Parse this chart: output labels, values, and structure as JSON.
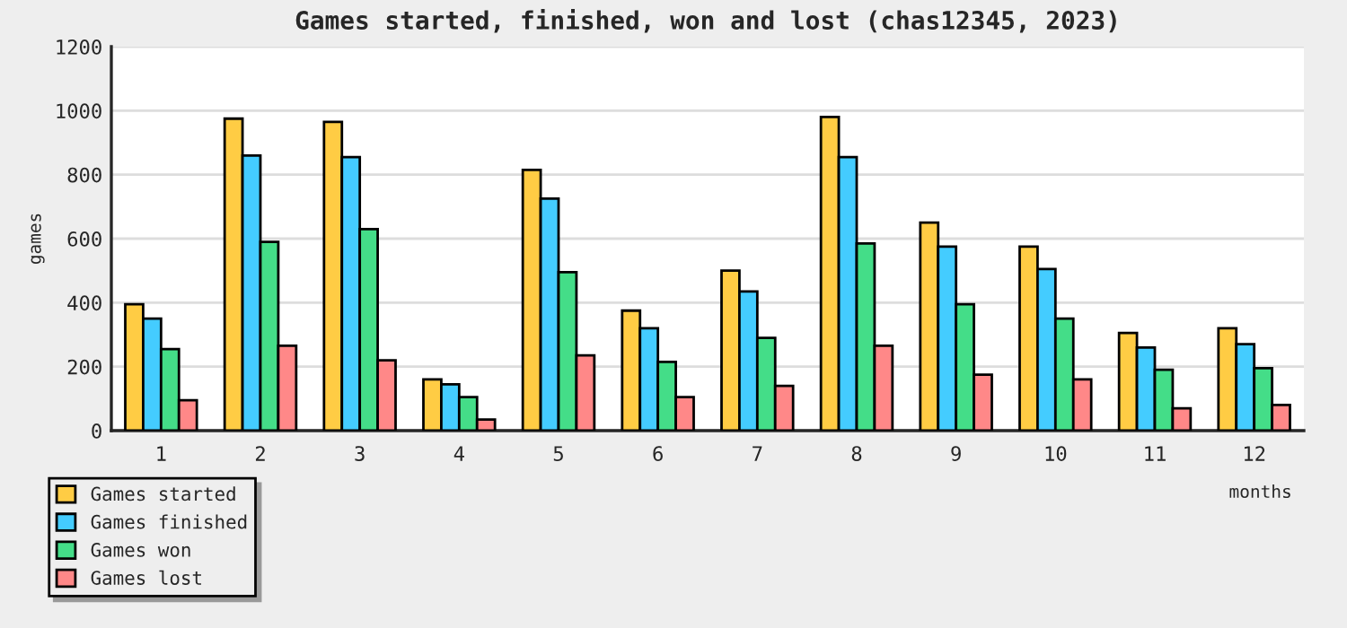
{
  "chart_data": {
    "type": "bar",
    "title": "Games started, finished, won and lost (chas12345, 2023)",
    "xlabel": "months",
    "ylabel": "games",
    "categories": [
      "1",
      "2",
      "3",
      "4",
      "5",
      "6",
      "7",
      "8",
      "9",
      "10",
      "11",
      "12"
    ],
    "series": [
      {
        "name": "Games started",
        "color": "#ffcc44",
        "values": [
          395,
          975,
          965,
          160,
          815,
          375,
          500,
          980,
          650,
          575,
          305,
          320
        ]
      },
      {
        "name": "Games finished",
        "color": "#44ccff",
        "values": [
          350,
          860,
          855,
          145,
          725,
          320,
          435,
          855,
          575,
          505,
          260,
          270
        ]
      },
      {
        "name": "Games won",
        "color": "#44dd88",
        "values": [
          255,
          590,
          630,
          105,
          495,
          215,
          290,
          585,
          395,
          350,
          190,
          195
        ]
      },
      {
        "name": "Games lost",
        "color": "#ff8888",
        "values": [
          95,
          265,
          220,
          35,
          235,
          105,
          140,
          265,
          175,
          160,
          70,
          80
        ]
      }
    ],
    "ylim": [
      0,
      1200
    ],
    "yticks": [
      0,
      200,
      400,
      600,
      800,
      1000,
      1200
    ],
    "grid": "y",
    "legend": "bottom left"
  }
}
